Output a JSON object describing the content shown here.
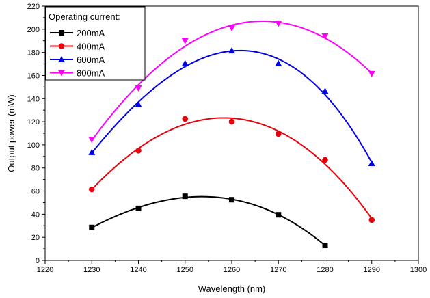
{
  "chart_data": {
    "type": "scatter",
    "xlabel": "Wavelength (nm)",
    "ylabel": "Output power (mW)",
    "xlim": [
      1220,
      1300
    ],
    "ylim": [
      0,
      220
    ],
    "xticks": [
      1220,
      1230,
      1240,
      1250,
      1260,
      1270,
      1280,
      1290,
      1300
    ],
    "yticks": [
      0,
      20,
      40,
      60,
      80,
      100,
      120,
      140,
      160,
      180,
      200,
      220
    ],
    "grid": false,
    "legend": {
      "title": "Operating current:",
      "position": "top-left"
    },
    "fit_curves": "polynomial",
    "series": [
      {
        "name": "200mA",
        "color": "#000000",
        "marker": "square",
        "x": [
          1230,
          1240,
          1250,
          1260,
          1270,
          1280
        ],
        "y": [
          28.5,
          45,
          55.5,
          52.5,
          39.5,
          13
        ]
      },
      {
        "name": "400mA",
        "color": "#e8000b",
        "marker": "circle",
        "x": [
          1230,
          1240,
          1250,
          1260,
          1270,
          1280,
          1290
        ],
        "y": [
          61.5,
          95,
          122.5,
          120,
          109.5,
          87,
          35
        ]
      },
      {
        "name": "600mA",
        "color": "#0000e0",
        "marker": "triangle-up",
        "x": [
          1230,
          1240,
          1250,
          1260,
          1270,
          1280,
          1290
        ],
        "y": [
          93.5,
          135,
          170.5,
          181.5,
          170.5,
          146.5,
          84
        ]
      },
      {
        "name": "800mA",
        "color": "#ff00ff",
        "marker": "triangle-down",
        "x": [
          1230,
          1240,
          1250,
          1260,
          1270,
          1280,
          1290
        ],
        "y": [
          104.5,
          149,
          190,
          201,
          205,
          194,
          161.5
        ]
      }
    ]
  }
}
